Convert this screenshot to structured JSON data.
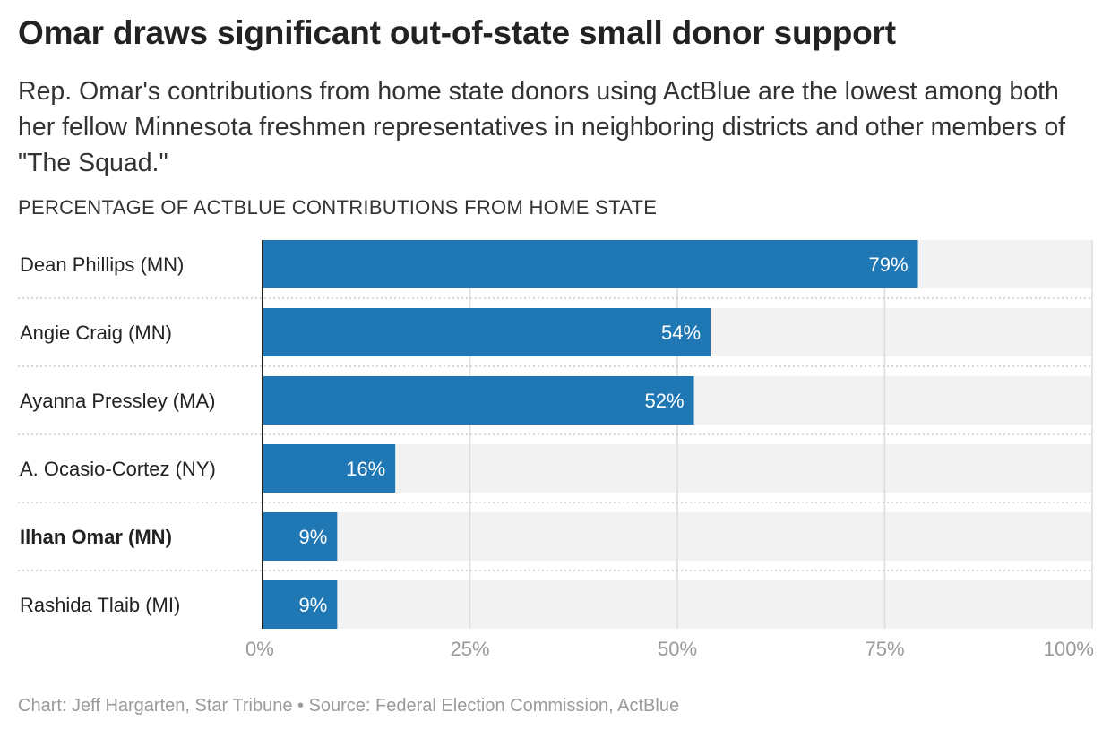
{
  "header": {
    "title": "Omar draws significant out-of-state small donor support",
    "subtitle": "Rep. Omar's contributions from home state donors using ActBlue are the lowest among both her fellow Minnesota freshmen representatives in neighboring districts and other members of \"The Squad.\""
  },
  "footer": {
    "credit": "Chart: Jeff Hargarten, Star Tribune • Source: Federal Election Commission, ActBlue"
  },
  "chart_data": {
    "type": "bar",
    "orientation": "horizontal",
    "ylabel": "PERCENTAGE OF ACTBLUE CONTRIBUTIONS FROM HOME STATE",
    "categories": [
      "Dean Phillips (MN)",
      "Angie Craig (MN)",
      "Ayanna Pressley (MA)",
      "A. Ocasio-Cortez (NY)",
      "Ilhan Omar (MN)",
      "Rashida Tlaib (MI)"
    ],
    "highlighted": [
      "Ilhan Omar (MN)"
    ],
    "values": [
      79,
      54,
      52,
      16,
      9,
      9
    ],
    "value_labels": [
      "79%",
      "54%",
      "52%",
      "16%",
      "9%",
      "9%"
    ],
    "xlim": [
      0,
      100
    ],
    "xticks": [
      0,
      25,
      50,
      75,
      100
    ],
    "xtick_labels": [
      "0%",
      "25%",
      "50%",
      "75%",
      "100%"
    ],
    "grid": true,
    "colors": {
      "bar": "#1f77b4",
      "track": "#f2f2f2",
      "grid": "#dcdcdc",
      "axis": "#222222",
      "tick_text": "#999999",
      "value_text": "#ffffff"
    }
  }
}
